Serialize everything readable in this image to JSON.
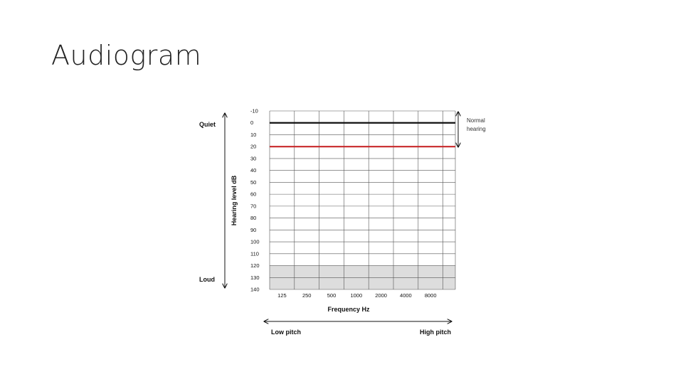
{
  "slide": {
    "title": "Audiogram"
  },
  "chart_data": {
    "type": "line",
    "xlabel": "Frequency Hz",
    "ylabel": "Hearing level dB",
    "x_tick_labels": [
      "125",
      "250",
      "500",
      "1000",
      "2000",
      "4000",
      "8000"
    ],
    "y_tick_labels": [
      "-10",
      "0",
      "10",
      "20",
      "30",
      "40",
      "50",
      "60",
      "70",
      "80",
      "90",
      "100",
      "110",
      "120",
      "130",
      "140"
    ],
    "ylim": [
      -10,
      140
    ],
    "y_inverted": true,
    "grid": true,
    "reference_lines": [
      {
        "y": 0,
        "color": "#111111"
      },
      {
        "y": 20,
        "color": "#c8282a"
      }
    ],
    "shaded_region": {
      "from": 120,
      "to": 140,
      "color": "#dddddd"
    },
    "annotations": {
      "quiet": "Quiet",
      "loud": "Loud",
      "low_pitch": "Low pitch",
      "high_pitch": "High pitch",
      "normal_hearing_line1": "Normal",
      "normal_hearing_line2": "hearing"
    }
  }
}
